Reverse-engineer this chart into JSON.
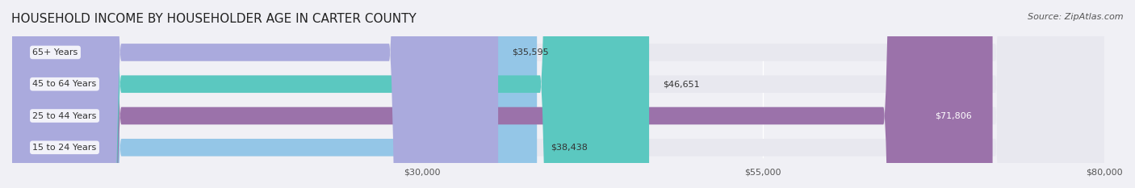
{
  "title": "HOUSEHOLD INCOME BY HOUSEHOLDER AGE IN CARTER COUNTY",
  "source": "Source: ZipAtlas.com",
  "categories": [
    "15 to 24 Years",
    "25 to 44 Years",
    "45 to 64 Years",
    "65+ Years"
  ],
  "values": [
    38438,
    71806,
    46651,
    35595
  ],
  "bar_colors": [
    "#94C6E7",
    "#9B72AA",
    "#5BC8C0",
    "#AAAADD"
  ],
  "bar_labels": [
    "$38,438",
    "$71,806",
    "$46,651",
    "$35,595"
  ],
  "label_inside": [
    false,
    true,
    false,
    false
  ],
  "xlim": [
    0,
    80000
  ],
  "xticks": [
    30000,
    55000,
    80000
  ],
  "xtick_labels": [
    "$30,000",
    "$55,000",
    "$80,000"
  ],
  "background_color": "#F0F0F5",
  "bar_bg_color": "#E8E8EF",
  "title_fontsize": 11,
  "source_fontsize": 8,
  "bar_height": 0.55,
  "fig_width": 14.06,
  "fig_height": 2.33,
  "dpi": 100
}
